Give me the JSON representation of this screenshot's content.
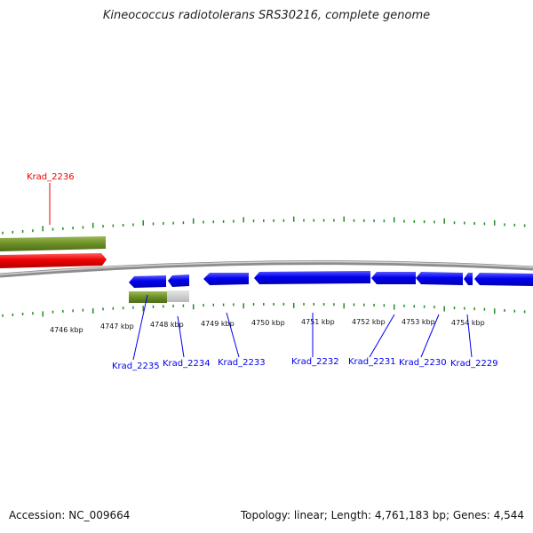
{
  "title": "Kineococcus radiotolerans SRS30216, complete genome",
  "footer": {
    "accession": "Accession: NC_009664",
    "summary": "Topology: linear; Length: 4,761,183 bp; Genes: 4,544"
  },
  "colors": {
    "forward_gene": "#ee0000",
    "reverse_gene": "#0000ee",
    "feature_green": "#6b8e23",
    "feature_grey": "#c8c8c8",
    "ticks": "#228b22",
    "backbone": "#8c8c8c"
  },
  "scale_labels": [
    "4746 kbp",
    "4747 kbp",
    "4748 kbp",
    "4749 kbp",
    "4750 kbp",
    "4751 kbp",
    "4752 kbp",
    "4753 kbp",
    "4754 kbp"
  ],
  "gene_labels": {
    "krad_2236": "Krad_2236",
    "krad_2235": "Krad_2235",
    "krad_2234": "Krad_2234",
    "krad_2233": "Krad_2233",
    "krad_2232": "Krad_2232",
    "krad_2231": "Krad_2231",
    "krad_2230": "Krad_2230",
    "krad_2229": "Krad_2229"
  }
}
